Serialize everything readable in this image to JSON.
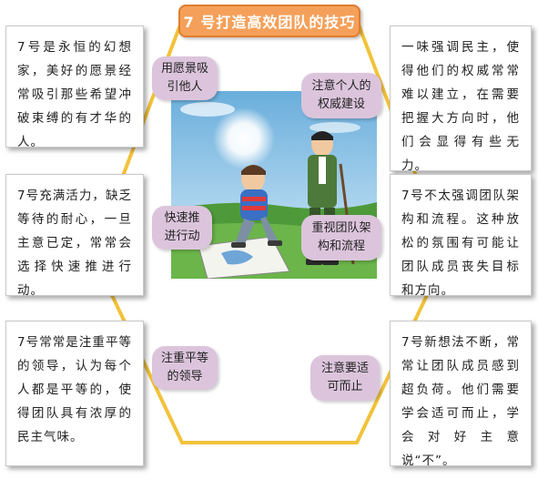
{
  "title": "7 号打造高效团队的技巧",
  "cards": {
    "top_left": "7号是永恒的幻想家，美好的愿景经常吸引那些希望冲破束缚的有才华的人。",
    "mid_left": "7号充满活力，缺乏等待的耐心，一旦主意已定，常常会选择快速推进行动。",
    "bottom_left": "7号常常是注重平等的领导，认为每个人都是平等的，使得团队具有浓厚的民主气味。",
    "top_right": "一味强调民主，使得他们的权威常常难以建立，在需要把握大方向时，他们会显得有些无力。",
    "mid_right": "7号不太强调团队架构和流程。这种放松的氛围有可能让团队成员丧失目标和方向。",
    "bottom_right": "7号新想法不断，常常让团队成员感到超负荷。他们需要学会适可而止，学会对好主意说“不”。"
  },
  "labels": {
    "vision": "用愿景吸引他人",
    "authority": "注意个人的权威建设",
    "fast": "快速推进行动",
    "structure": "重视团队架构和流程",
    "equality": "注重平等的领导",
    "moderation": "注意要适可而止"
  },
  "colors": {
    "title_bg": "#f5a05a",
    "pill_bg": "#dcc5dc",
    "hexagon": "#f2c23a",
    "sky": "#8fc3e6"
  }
}
